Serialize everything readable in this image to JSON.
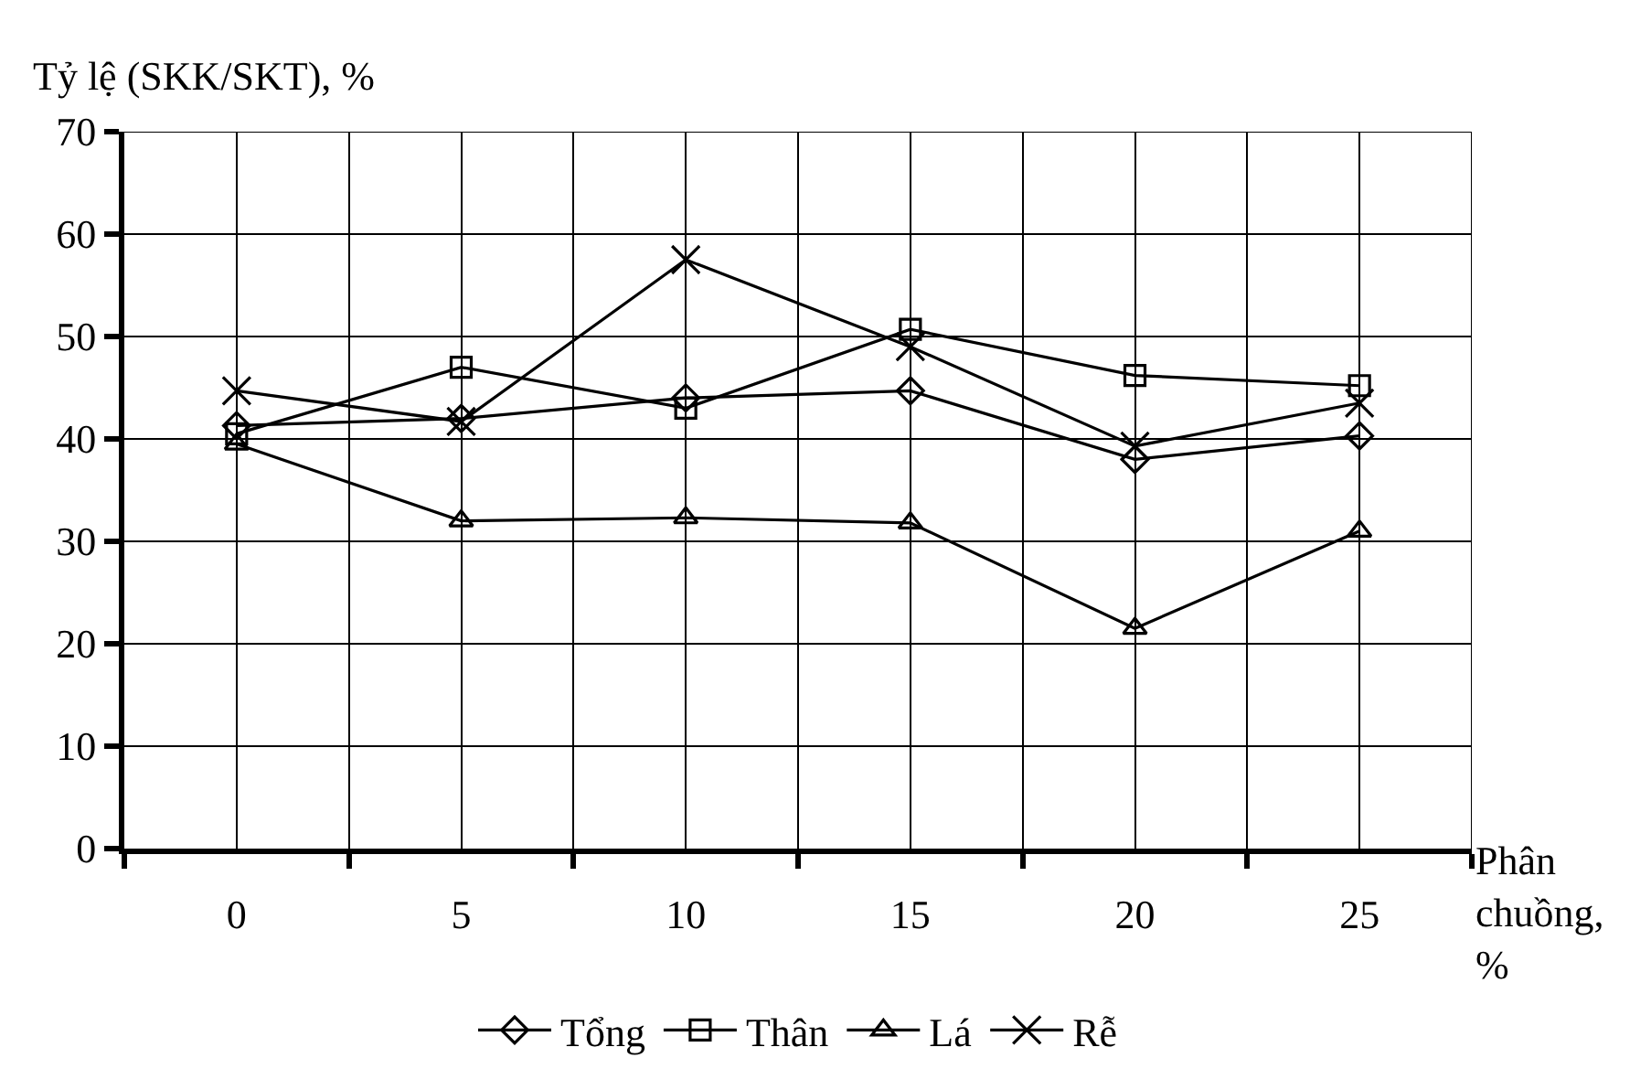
{
  "chart_data": {
    "type": "line",
    "ylabel": "Tỷ lệ (SKK/SKT), %",
    "xlabel": "Phân chuồng, %",
    "x": [
      0,
      5,
      10,
      15,
      20,
      25
    ],
    "xlim": [
      -2.5,
      27.5
    ],
    "xticks": [
      0,
      5,
      10,
      15,
      20,
      25
    ],
    "ylim": [
      0,
      70
    ],
    "yticks": [
      0,
      10,
      20,
      30,
      40,
      50,
      60,
      70
    ],
    "grid": true,
    "legend": "bottom",
    "line_style": "solid",
    "series": [
      {
        "name": "Tổng",
        "color": "#000000",
        "marker": "diamond",
        "values": [
          41.3,
          42,
          44,
          44.7,
          38,
          40.3
        ]
      },
      {
        "name": "Thân",
        "color": "#000000",
        "marker": "square",
        "values": [
          40.5,
          47,
          43,
          50.7,
          46.2,
          45.2
        ]
      },
      {
        "name": "Lá",
        "color": "#000000",
        "marker": "triangle",
        "values": [
          39.5,
          32,
          32.3,
          31.8,
          21.5,
          31
        ]
      },
      {
        "name": "Rễ",
        "color": "#000000",
        "marker": "cross",
        "values": [
          44.7,
          41.7,
          57.5,
          49,
          39.3,
          43.5
        ]
      }
    ]
  }
}
